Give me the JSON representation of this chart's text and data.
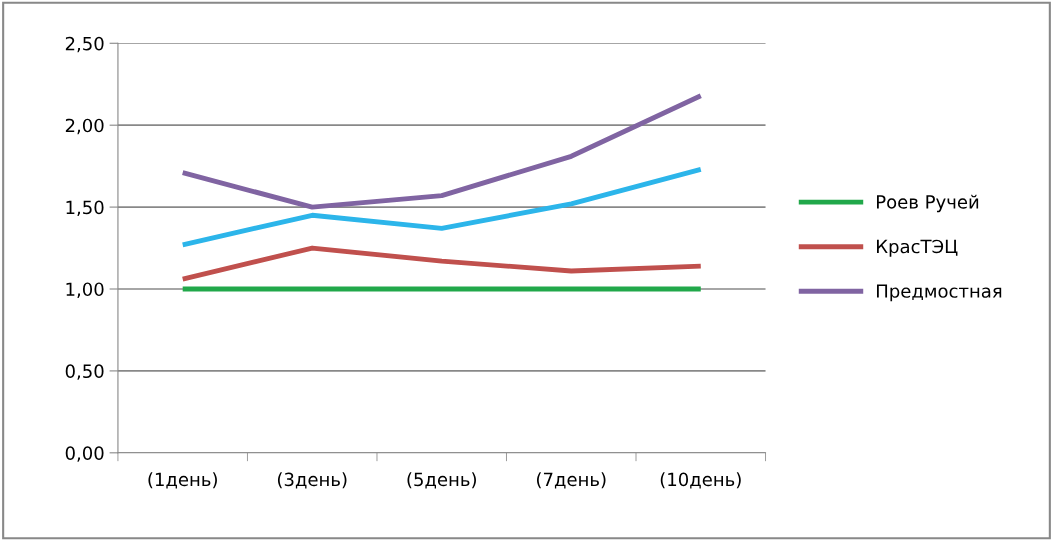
{
  "chart_data": {
    "type": "line",
    "categories": [
      "(1день)",
      "(3день)",
      "(5день)",
      "(7день)",
      "(10день)"
    ],
    "series": [
      {
        "name": "Роев Ручей",
        "color": "#21a84a",
        "values": [
          1.0,
          1.0,
          1.0,
          1.0,
          1.0
        ]
      },
      {
        "name": "КрасТЭЦ",
        "color": "#c0504d",
        "values": [
          1.06,
          1.25,
          1.17,
          1.11,
          1.14
        ]
      },
      {
        "color": "#2cb5ea",
        "values": [
          1.27,
          1.45,
          1.37,
          1.52,
          1.73
        ]
      },
      {
        "name": "Предмостная",
        "color": "#8064a2",
        "values": [
          1.71,
          1.5,
          1.57,
          1.81,
          2.18
        ]
      }
    ],
    "ylim": [
      0,
      2.5
    ],
    "yticks": [
      {
        "value": 0,
        "label": "0,00"
      },
      {
        "value": 0.5,
        "label": "0,50"
      },
      {
        "value": 1,
        "label": "1,00"
      },
      {
        "value": 1.5,
        "label": "1,50"
      },
      {
        "value": 2,
        "label": "2,00"
      },
      {
        "value": 2.5,
        "label": "2,50"
      }
    ],
    "grid": "y",
    "legend": "right",
    "marker": "none",
    "line_style": "solid"
  }
}
